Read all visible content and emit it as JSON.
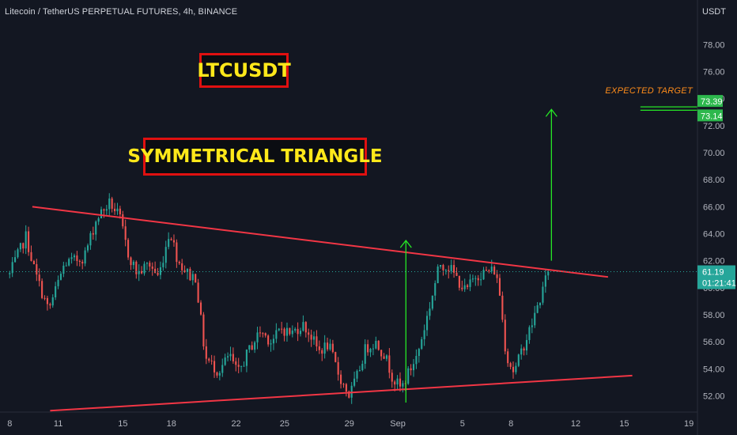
{
  "header": {
    "title": "Litecoin / TetherUS PERPETUAL FUTURES, 4h, BINANCE",
    "currency": "USDT"
  },
  "annotations": {
    "symbol": "LTCUSDT",
    "pattern": "SYMMETRICAL TRIANGLE",
    "target_text": "EXPECTED TARGET"
  },
  "colors": {
    "background": "#131722",
    "up": "#26a69a",
    "down": "#ef5350",
    "trendline": "#f23645",
    "arrow": "#26e626",
    "target_badge": "#2db84d",
    "price_badge": "#26a69a",
    "label_text": "#ffe81a",
    "label_border": "#e01010",
    "target_text": "#ff8c1a"
  },
  "chart_data": {
    "type": "candlestick",
    "title": "Litecoin / TetherUS PERPETUAL FUTURES, 4h, BINANCE",
    "y_axis": {
      "unit": "USDT",
      "min": 50.8,
      "max": 81.3,
      "ticks": [
        52,
        54,
        56,
        58,
        60,
        62,
        64,
        66,
        68,
        70,
        72,
        74,
        76,
        78
      ]
    },
    "x_axis": {
      "ticks": [
        "8",
        "11",
        "15",
        "18",
        "22",
        "25",
        "29",
        "Sep",
        "5",
        "8",
        "12",
        "15",
        "19"
      ],
      "tick_days": [
        0,
        3,
        7,
        10,
        14,
        17,
        21,
        24,
        28,
        31,
        35,
        38,
        42
      ]
    },
    "last_price": "61.19",
    "countdown": "01:21:41",
    "target_levels": [
      "73.39",
      "73.14"
    ],
    "trendlines": [
      {
        "name": "upper",
        "points": [
          [
            1.4,
            66.0
          ],
          [
            37.0,
            60.8
          ]
        ]
      },
      {
        "name": "lower",
        "points": [
          [
            2.5,
            50.9
          ],
          [
            38.5,
            53.5
          ]
        ]
      }
    ],
    "arrows": [
      {
        "x": 24.5,
        "from": 51.5,
        "to": 63.5
      },
      {
        "x": 33.5,
        "from": 62.0,
        "to": 73.2
      }
    ],
    "target_lines": {
      "x_start": 39.0,
      "values": [
        73.39,
        73.14
      ]
    },
    "path": [
      [
        0,
        61.0
      ],
      [
        1.0,
        63.8
      ],
      [
        1.6,
        61.0
      ],
      [
        2.4,
        58.3
      ],
      [
        3.4,
        61.8
      ],
      [
        4.0,
        62.0
      ],
      [
        4.6,
        62.3
      ],
      [
        5.4,
        65.2
      ],
      [
        6.2,
        66.3
      ],
      [
        6.8,
        65.2
      ],
      [
        7.3,
        62.6
      ],
      [
        7.9,
        61.0
      ],
      [
        8.6,
        61.8
      ],
      [
        9.2,
        60.8
      ],
      [
        9.9,
        64.3
      ],
      [
        10.4,
        62.0
      ],
      [
        11.1,
        60.9
      ],
      [
        11.5,
        60.8
      ],
      [
        12.1,
        54.8
      ],
      [
        12.9,
        53.8
      ],
      [
        13.6,
        55.0
      ],
      [
        14.1,
        53.6
      ],
      [
        14.8,
        55.4
      ],
      [
        15.5,
        56.8
      ],
      [
        16.2,
        56.0
      ],
      [
        16.8,
        57.0
      ],
      [
        17.4,
        56.6
      ],
      [
        18.1,
        57.3
      ],
      [
        18.6,
        56.5
      ],
      [
        19.1,
        55.3
      ],
      [
        19.7,
        55.8
      ],
      [
        20.4,
        53.4
      ],
      [
        21.0,
        52.0
      ],
      [
        21.5,
        53.5
      ],
      [
        22.0,
        55.5
      ],
      [
        22.6,
        56.0
      ],
      [
        23.2,
        55.0
      ],
      [
        23.7,
        53.3
      ],
      [
        24.2,
        52.5
      ],
      [
        24.7,
        53.8
      ],
      [
        25.2,
        55.0
      ],
      [
        25.8,
        57.8
      ],
      [
        26.6,
        61.8
      ],
      [
        27.2,
        61.5
      ],
      [
        27.7,
        60.6
      ],
      [
        28.2,
        59.7
      ],
      [
        28.8,
        60.9
      ],
      [
        29.5,
        61.2
      ],
      [
        30.0,
        61.3
      ],
      [
        30.3,
        59.6
      ],
      [
        30.7,
        55.0
      ],
      [
        31.2,
        53.7
      ],
      [
        31.7,
        55.5
      ],
      [
        32.2,
        57.0
      ],
      [
        32.8,
        59.2
      ],
      [
        33.3,
        61.19
      ]
    ]
  }
}
